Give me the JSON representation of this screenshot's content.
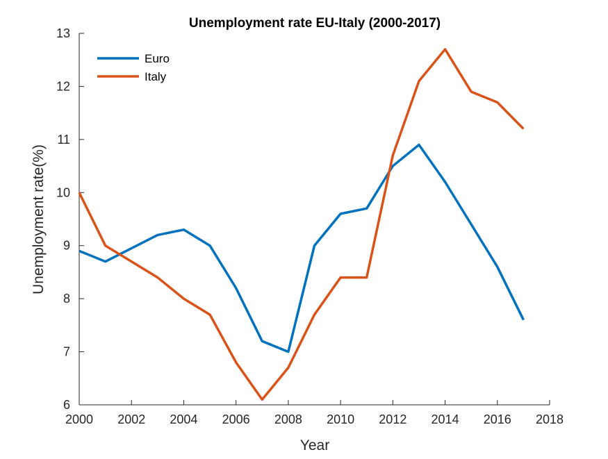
{
  "chart_data": {
    "type": "line",
    "title": "Unemployment rate EU-Italy (2000-2017)",
    "xlabel": "Year",
    "ylabel": "Unemployment rate(%)",
    "xlim": [
      2000,
      2018
    ],
    "ylim": [
      6,
      13
    ],
    "xticks": [
      "2000",
      "2002",
      "2004",
      "2006",
      "2008",
      "2010",
      "2012",
      "2014",
      "2016",
      "2018"
    ],
    "yticks": [
      "6",
      "7",
      "8",
      "9",
      "10",
      "11",
      "12",
      "13"
    ],
    "grid": false,
    "legend_position": "top-left",
    "x": [
      2000,
      2001,
      2002,
      2003,
      2004,
      2005,
      2006,
      2007,
      2008,
      2009,
      2010,
      2011,
      2012,
      2013,
      2014,
      2015,
      2016,
      2017
    ],
    "series": [
      {
        "name": "Euro",
        "color": "#0072BD",
        "values": [
          8.9,
          8.7,
          8.95,
          9.2,
          9.3,
          9.0,
          8.2,
          7.2,
          7.0,
          9.0,
          9.6,
          9.7,
          10.5,
          10.9,
          10.2,
          9.4,
          8.6,
          7.6
        ]
      },
      {
        "name": "Italy",
        "color": "#D95319",
        "values": [
          10.0,
          9.0,
          8.7,
          8.4,
          8.0,
          7.7,
          6.8,
          6.1,
          6.7,
          7.7,
          8.4,
          8.4,
          10.7,
          12.1,
          12.7,
          11.9,
          11.7,
          11.2
        ]
      }
    ]
  }
}
